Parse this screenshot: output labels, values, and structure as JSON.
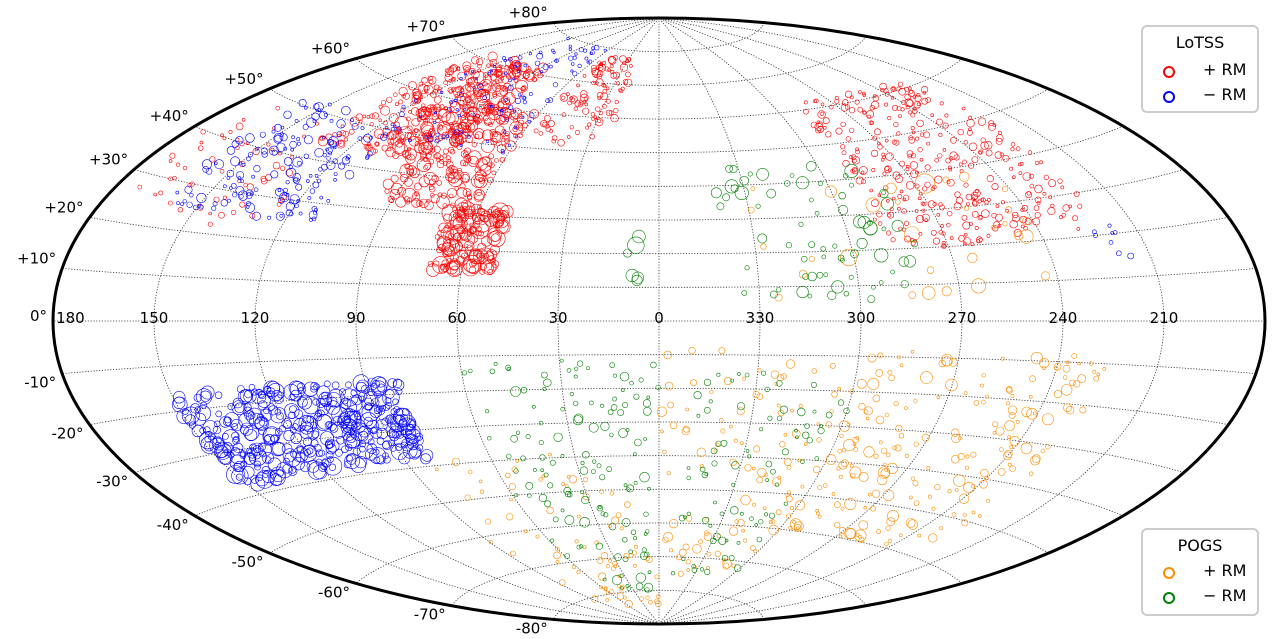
{
  "chart_data": {
    "type": "scatter",
    "projection": "aitoff",
    "coordinate_system": "galactic",
    "grid": true,
    "longitude_ticks": [
      "180",
      "150",
      "120",
      "90",
      "60",
      "30",
      "0",
      "330",
      "300",
      "270",
      "240",
      "210"
    ],
    "latitude_ticks": [
      "+80°",
      "+70°",
      "+60°",
      "+50°",
      "+40°",
      "+30°",
      "+20°",
      "+10°",
      "0°",
      "-10°",
      "-20°",
      "-30°",
      "-40°",
      "-50°",
      "-60°",
      "-70°",
      "-80°"
    ],
    "marker_size_encodes": "|RM|",
    "legends": [
      {
        "title": "LoTSS",
        "placement": "top-right",
        "entries": [
          {
            "label": "+ RM",
            "color": "#ff0000"
          },
          {
            "label": "− RM",
            "color": "#0000ff"
          }
        ]
      },
      {
        "title": "POGS",
        "placement": "bottom-right",
        "entries": [
          {
            "label": "+ RM",
            "color": "#ff8c00"
          },
          {
            "label": "− RM",
            "color": "#008000"
          }
        ]
      }
    ],
    "series": [
      {
        "legend": "LoTSS",
        "sign": "+",
        "color": "#ff0000",
        "regions": [
          {
            "l": [
              125,
              175
            ],
            "b": [
              22,
              48
            ],
            "weight": 60,
            "size": [
              1.5,
              3.5
            ]
          },
          {
            "l": [
              95,
              135
            ],
            "b": [
              44,
              72
            ],
            "weight": 180,
            "size": [
              1.5,
              5
            ]
          },
          {
            "l": [
              80,
              115
            ],
            "b": [
              44,
              72
            ],
            "weight": 180,
            "size": [
              2,
              7
            ]
          },
          {
            "l": [
              60,
              95
            ],
            "b": [
              32,
              60
            ],
            "weight": 220,
            "size": [
              2,
              7
            ]
          },
          {
            "l": [
              50,
              70
            ],
            "b": [
              14,
              32
            ],
            "weight": 150,
            "size": [
              2.5,
              9
            ]
          },
          {
            "l": [
              20,
              55
            ],
            "b": [
              52,
              78
            ],
            "weight": 100,
            "size": [
              1.5,
              4
            ]
          },
          {
            "l": [
              220,
              290
            ],
            "b": [
              20,
              62
            ],
            "weight": 340,
            "size": [
              1.5,
              4
            ]
          }
        ]
      },
      {
        "legend": "LoTSS",
        "sign": "−",
        "color": "#0000ff",
        "regions": [
          {
            "l": [
              110,
              160
            ],
            "b": [
              25,
              52
            ],
            "weight": 170,
            "size": [
              1.5,
              5
            ]
          },
          {
            "l": [
              60,
              125
            ],
            "b": [
              48,
              80
            ],
            "weight": 110,
            "size": [
              1.2,
              3
            ]
          },
          {
            "l": [
              215,
              225
            ],
            "b": [
              14,
              24
            ],
            "weight": 8,
            "size": [
              1.5,
              3
            ]
          },
          {
            "l": [
              80,
              150
            ],
            "b": [
              -38,
              -16
            ],
            "weight": 420,
            "size": [
              3,
              9
            ]
          }
        ]
      },
      {
        "legend": "POGS",
        "sign": "+",
        "color": "#ff8c00",
        "regions": [
          {
            "l": [
              225,
              300
            ],
            "b": [
              -60,
              -8
            ],
            "weight": 200,
            "size": [
              1.5,
              6
            ]
          },
          {
            "l": [
              300,
              360
            ],
            "b": [
              -75,
              -8
            ],
            "weight": 110,
            "size": [
              1.5,
              5
            ]
          },
          {
            "l": [
              0,
              90
            ],
            "b": [
              -85,
              -38
            ],
            "weight": 80,
            "size": [
              1.5,
              4
            ]
          },
          {
            "l": [
              240,
              330
            ],
            "b": [
              6,
              40
            ],
            "weight": 30,
            "size": [
              2,
              10
            ]
          }
        ]
      },
      {
        "legend": "POGS",
        "sign": "−",
        "color": "#008000",
        "regions": [
          {
            "l": [
              0,
              60
            ],
            "b": [
              -80,
              -10
            ],
            "weight": 130,
            "size": [
              1.5,
              5
            ]
          },
          {
            "l": [
              300,
              350
            ],
            "b": [
              -75,
              -15
            ],
            "weight": 80,
            "size": [
              1.5,
              4
            ]
          },
          {
            "l": [
              280,
              340
            ],
            "b": [
              6,
              45
            ],
            "weight": 70,
            "size": [
              2,
              7
            ]
          },
          {
            "l": [
              0,
              10
            ],
            "b": [
              12,
              26
            ],
            "weight": 6,
            "size": [
              4,
              12
            ]
          }
        ]
      }
    ]
  }
}
